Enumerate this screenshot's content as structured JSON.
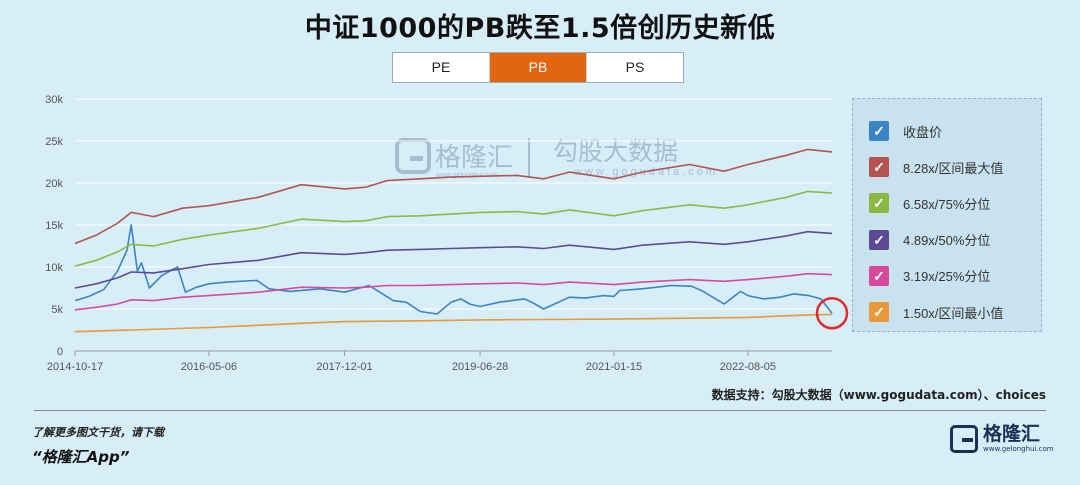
{
  "title": "中证1000的PB跌至1.5倍创历史新低",
  "tabs": [
    {
      "label": "PE",
      "active": false
    },
    {
      "label": "PB",
      "active": true
    },
    {
      "label": "PS",
      "active": false
    }
  ],
  "watermark": {
    "brand": "格隆汇",
    "cn": "勾股大数据",
    "brand_url": "www.gelonghui.com",
    "url": "www.gogudata.com"
  },
  "source": "数据支持：勾股大数据（www.gogudata.com）、choices",
  "footer": {
    "line1": "了解更多图文干货，请下载",
    "line2": "“格隆汇App”"
  },
  "brand": {
    "name": "格隆汇",
    "url": "www.gelonghui.com"
  },
  "chart_data": {
    "type": "line",
    "title": "中证1000的PB跌至1.5倍创历史新低",
    "xlabel": "",
    "ylabel": "",
    "ylim": [
      0,
      30000
    ],
    "yticks": [
      0,
      5000,
      10000,
      15000,
      20000,
      25000,
      30000
    ],
    "ytick_labels": [
      "0",
      "5k",
      "10k",
      "15k",
      "20k",
      "25k",
      "30k"
    ],
    "xlim": [
      "2014-10-17",
      "2023-07-27"
    ],
    "xtick_labels": [
      "2014-10-17",
      "2016-05-06",
      "2017-12-01",
      "2019-06-28",
      "2021-01-15",
      "2022-08-05"
    ],
    "grid": "horizontal",
    "legend_position": "right",
    "series": [
      {
        "name": "收盘价",
        "color": "#3b84c4",
        "x": [
          "2014-10-17",
          "2014-12-15",
          "2015-02-15",
          "2015-04-15",
          "2015-05-25",
          "2015-06-12",
          "2015-07-08",
          "2015-07-25",
          "2015-08-28",
          "2015-10-20",
          "2015-12-25",
          "2016-01-28",
          "2016-03-15",
          "2016-05-06",
          "2016-07-20",
          "2016-11-25",
          "2017-01-16",
          "2017-04-15",
          "2017-08-20",
          "2017-12-01",
          "2018-03-15",
          "2018-06-25",
          "2018-08-20",
          "2018-10-18",
          "2018-12-28",
          "2019-02-25",
          "2019-04-08",
          "2019-05-15",
          "2019-06-28",
          "2019-09-15",
          "2019-12-31",
          "2020-02-03",
          "2020-03-23",
          "2020-07-10",
          "2020-09-15",
          "2020-12-01",
          "2021-01-15",
          "2021-02-08",
          "2021-05-15",
          "2021-09-15",
          "2021-12-10",
          "2022-01-28",
          "2022-04-26",
          "2022-07-05",
          "2022-08-05",
          "2022-10-10",
          "2022-12-20",
          "2023-02-15",
          "2023-04-20",
          "2023-06-10",
          "2023-07-27"
        ],
        "y": [
          6000,
          6500,
          7300,
          9500,
          12000,
          15000,
          9500,
          10500,
          7500,
          9000,
          10000,
          7000,
          7600,
          8000,
          8200,
          8400,
          7400,
          7100,
          7400,
          7000,
          7800,
          6000,
          5800,
          4700,
          4400,
          5800,
          6200,
          5600,
          5300,
          5800,
          6200,
          5800,
          5000,
          6400,
          6300,
          6600,
          6500,
          7200,
          7400,
          7800,
          7700,
          7100,
          5600,
          7100,
          6600,
          6200,
          6400,
          6800,
          6600,
          6200,
          4500
        ]
      },
      {
        "name": "8.28x/区间最大值",
        "color": "#b35450",
        "x": [
          "2014-10-17",
          "2015-01-15",
          "2015-04-15",
          "2015-06-12",
          "2015-09-15",
          "2016-01-15",
          "2016-05-06",
          "2016-12-01",
          "2017-06-01",
          "2017-12-01",
          "2018-03-01",
          "2018-06-01",
          "2018-10-18",
          "2019-02-25",
          "2019-06-28",
          "2019-12-01",
          "2020-03-23",
          "2020-07-10",
          "2021-01-15",
          "2021-05-15",
          "2021-12-01",
          "2022-04-26",
          "2022-08-05",
          "2023-01-15",
          "2023-04-15",
          "2023-07-27"
        ],
        "y": [
          12800,
          13800,
          15200,
          16500,
          16000,
          17000,
          17300,
          18300,
          19800,
          19300,
          19500,
          20300,
          20500,
          20700,
          20800,
          20900,
          20500,
          21300,
          20500,
          21300,
          22200,
          21400,
          22200,
          23300,
          24000,
          23700
        ]
      },
      {
        "name": "6.58x/75%分位",
        "color": "#8cb944",
        "x": [
          "2014-10-17",
          "2015-01-15",
          "2015-04-15",
          "2015-06-12",
          "2015-09-15",
          "2016-01-15",
          "2016-05-06",
          "2016-12-01",
          "2017-06-01",
          "2017-12-01",
          "2018-03-01",
          "2018-06-01",
          "2018-10-18",
          "2019-02-25",
          "2019-06-28",
          "2019-12-01",
          "2020-03-23",
          "2020-07-10",
          "2021-01-15",
          "2021-05-15",
          "2021-12-01",
          "2022-04-26",
          "2022-08-05",
          "2023-01-15",
          "2023-04-15",
          "2023-07-27"
        ],
        "y": [
          10100,
          10800,
          11800,
          12700,
          12500,
          13300,
          13800,
          14600,
          15700,
          15400,
          15500,
          16000,
          16100,
          16300,
          16500,
          16600,
          16300,
          16800,
          16100,
          16700,
          17400,
          17000,
          17400,
          18300,
          19000,
          18800
        ]
      },
      {
        "name": "4.89x/50%分位",
        "color": "#5e4a94",
        "x": [
          "2014-10-17",
          "2015-01-15",
          "2015-04-15",
          "2015-06-12",
          "2015-09-15",
          "2016-01-15",
          "2016-05-06",
          "2016-12-01",
          "2017-06-01",
          "2017-12-01",
          "2018-03-01",
          "2018-06-01",
          "2018-10-18",
          "2019-02-25",
          "2019-06-28",
          "2019-12-01",
          "2020-03-23",
          "2020-07-10",
          "2021-01-15",
          "2021-05-15",
          "2021-12-01",
          "2022-04-26",
          "2022-08-05",
          "2023-01-15",
          "2023-04-15",
          "2023-07-27"
        ],
        "y": [
          7500,
          8000,
          8700,
          9400,
          9300,
          9800,
          10300,
          10800,
          11700,
          11500,
          11700,
          12000,
          12100,
          12200,
          12300,
          12400,
          12200,
          12600,
          12100,
          12600,
          13000,
          12700,
          13000,
          13700,
          14200,
          14000
        ]
      },
      {
        "name": "3.19x/25%分位",
        "color": "#d74a99",
        "x": [
          "2014-10-17",
          "2015-01-15",
          "2015-04-15",
          "2015-06-12",
          "2015-09-15",
          "2016-01-15",
          "2016-05-06",
          "2016-12-01",
          "2017-06-01",
          "2017-12-01",
          "2018-03-01",
          "2018-06-01",
          "2018-10-18",
          "2019-02-25",
          "2019-06-28",
          "2019-12-01",
          "2020-03-23",
          "2020-07-10",
          "2021-01-15",
          "2021-05-15",
          "2021-12-01",
          "2022-04-26",
          "2022-08-05",
          "2023-01-15",
          "2023-04-15",
          "2023-07-27"
        ],
        "y": [
          4900,
          5200,
          5600,
          6100,
          6000,
          6400,
          6600,
          7000,
          7600,
          7500,
          7600,
          7800,
          7800,
          7900,
          8000,
          8100,
          7900,
          8200,
          7900,
          8200,
          8500,
          8300,
          8500,
          8900,
          9200,
          9100
        ]
      },
      {
        "name": "1.50x/区间最小值",
        "color": "#e9983a",
        "x": [
          "2014-10-17",
          "2015-06-12",
          "2016-05-06",
          "2017-06-01",
          "2017-12-01",
          "2018-10-18",
          "2019-06-28",
          "2020-03-23",
          "2021-01-15",
          "2021-12-01",
          "2022-08-05",
          "2023-04-15",
          "2023-07-27"
        ],
        "y": [
          2300,
          2500,
          2800,
          3300,
          3500,
          3600,
          3700,
          3750,
          3800,
          3900,
          4000,
          4300,
          4350
        ]
      }
    ],
    "annotation": {
      "type": "circle",
      "series": "收盘价",
      "x": "2023-07-27",
      "y": 4500,
      "color": "#e02b2b"
    }
  }
}
